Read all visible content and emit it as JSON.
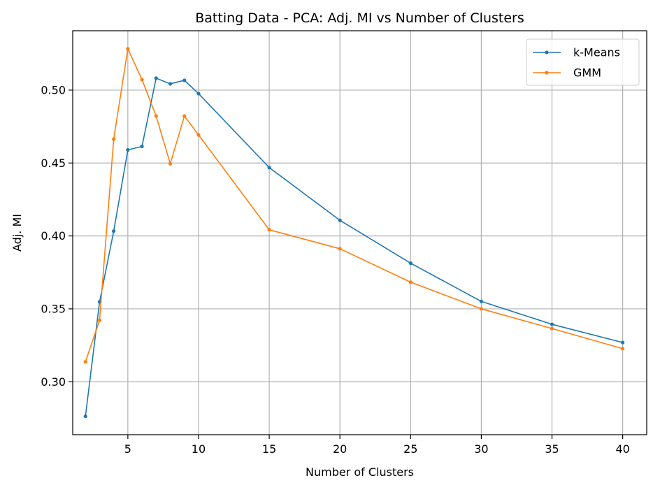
{
  "chart_data": {
    "type": "line",
    "title": "Batting Data - PCA: Adj. MI vs Number of Clusters",
    "xlabel": "Number of Clusters",
    "ylabel": "Adj. MI",
    "x": [
      2,
      3,
      4,
      5,
      6,
      7,
      8,
      9,
      10,
      15,
      20,
      25,
      30,
      35,
      40
    ],
    "xlim": [
      1.1,
      41.7
    ],
    "ylim": [
      0.2637,
      0.5407
    ],
    "xticks": [
      5,
      10,
      15,
      20,
      25,
      30,
      35,
      40
    ],
    "xtick_labels": [
      "5",
      "10",
      "15",
      "20",
      "25",
      "30",
      "35",
      "40"
    ],
    "yticks": [
      0.3,
      0.35,
      0.4,
      0.45,
      0.5
    ],
    "ytick_labels": [
      "0.30",
      "0.35",
      "0.40",
      "0.45",
      "0.50"
    ],
    "grid": true,
    "legend_position": "top-right",
    "series": [
      {
        "name": "k-Means",
        "color": "#1f77b4",
        "values": [
          0.2763,
          0.3548,
          0.4033,
          0.459,
          0.4614,
          0.5082,
          0.5043,
          0.5067,
          0.4976,
          0.4469,
          0.4107,
          0.3813,
          0.3551,
          0.3394,
          0.3269
        ]
      },
      {
        "name": "GMM",
        "color": "#ff7f0e",
        "values": [
          0.3137,
          0.3422,
          0.4664,
          0.5283,
          0.5072,
          0.4822,
          0.4495,
          0.4822,
          0.4693,
          0.4042,
          0.3912,
          0.3683,
          0.35,
          0.3365,
          0.3227
        ]
      }
    ]
  }
}
